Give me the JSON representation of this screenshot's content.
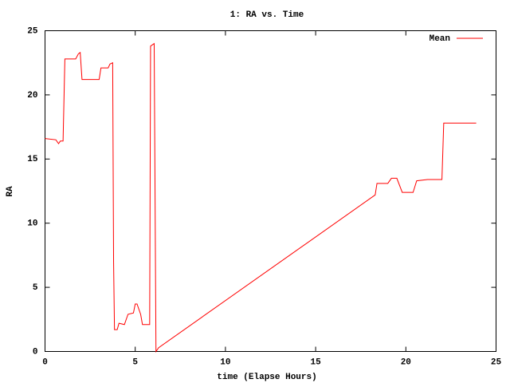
{
  "chart_data": {
    "type": "line",
    "title": "1: RA vs. Time",
    "x_label": "time (Elapse Hours)",
    "y_label": "RA",
    "x": [
      0,
      0.6,
      0.75,
      0.85,
      1.0,
      1.1,
      1.7,
      1.85,
      1.95,
      2.05,
      3.0,
      3.1,
      3.5,
      3.6,
      3.75,
      3.8,
      3.85,
      4.0,
      4.1,
      4.4,
      4.6,
      4.9,
      5.0,
      5.1,
      5.3,
      5.4,
      5.8,
      5.85,
      6.05,
      6.15,
      6.3,
      18.3,
      18.4,
      19.0,
      19.2,
      19.5,
      19.8,
      20.4,
      20.6,
      21.2,
      22.0,
      22.1,
      23.9
    ],
    "series": [
      {
        "name": "Mean",
        "color": "#ff0000",
        "values": [
          16.6,
          16.5,
          16.2,
          16.4,
          16.4,
          22.8,
          22.8,
          23.2,
          23.3,
          21.2,
          21.2,
          22.1,
          22.1,
          22.4,
          22.5,
          7,
          1.7,
          1.7,
          2.2,
          2.1,
          2.9,
          3.0,
          3.7,
          3.7,
          2.9,
          2.1,
          2.1,
          23.8,
          24.0,
          0,
          0.3,
          12.2,
          13.1,
          13.1,
          13.5,
          13.5,
          12.4,
          12.4,
          13.3,
          13.4,
          13.4,
          17.8,
          17.8
        ]
      }
    ],
    "xlim": [
      0,
      25
    ],
    "xticks": [
      0,
      5,
      10,
      15,
      20,
      25
    ],
    "ylim": [
      0,
      25
    ],
    "yticks": [
      0,
      5,
      10,
      15,
      20,
      25
    ],
    "legend": "top-right"
  }
}
